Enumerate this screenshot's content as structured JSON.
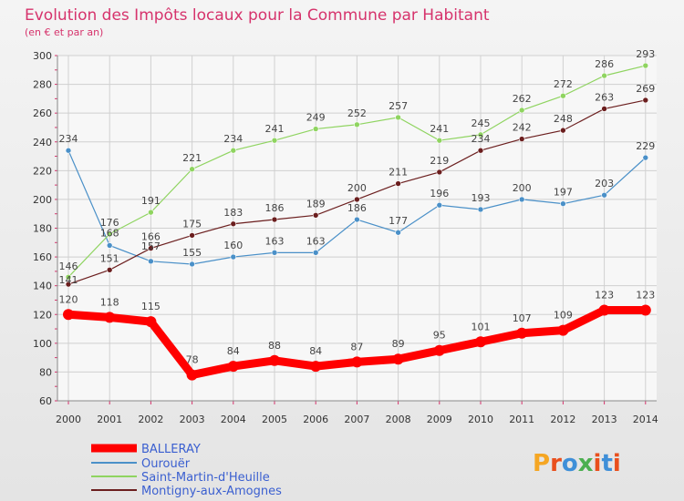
{
  "chart_data": {
    "type": "line",
    "title": "Evolution des Impôts locaux pour la Commune par Habitant",
    "subtitle": "(en € et par an)",
    "x": [
      2000,
      2001,
      2002,
      2003,
      2004,
      2005,
      2006,
      2007,
      2008,
      2009,
      2010,
      2011,
      2012,
      2013,
      2014
    ],
    "ylim": [
      60,
      300
    ],
    "yticks": [
      60,
      80,
      100,
      120,
      140,
      160,
      180,
      200,
      220,
      240,
      260,
      280,
      300
    ],
    "grid": true,
    "legend_position": "bottom-left",
    "series": [
      {
        "name": "BALLERAY",
        "color": "#ff0000",
        "values": [
          120,
          118,
          115,
          78,
          84,
          88,
          84,
          87,
          89,
          95,
          101,
          107,
          109,
          123,
          123
        ]
      },
      {
        "name": "Ourouër",
        "color": "#4a90c8",
        "values": [
          234,
          168,
          157,
          155,
          160,
          163,
          163,
          186,
          177,
          196,
          193,
          200,
          197,
          203,
          229
        ]
      },
      {
        "name": "Saint-Martin-d'Heuille",
        "color": "#8fd460",
        "values": [
          146,
          176,
          191,
          221,
          234,
          241,
          249,
          252,
          257,
          241,
          245,
          262,
          272,
          286,
          293
        ]
      },
      {
        "name": "Montigny-aux-Amognes",
        "color": "#6b1e1e",
        "values": [
          141,
          151,
          166,
          175,
          183,
          186,
          189,
          200,
          211,
          219,
          234,
          242,
          248,
          263,
          269
        ]
      }
    ]
  },
  "brand": {
    "logo_text": "Proxiti"
  }
}
